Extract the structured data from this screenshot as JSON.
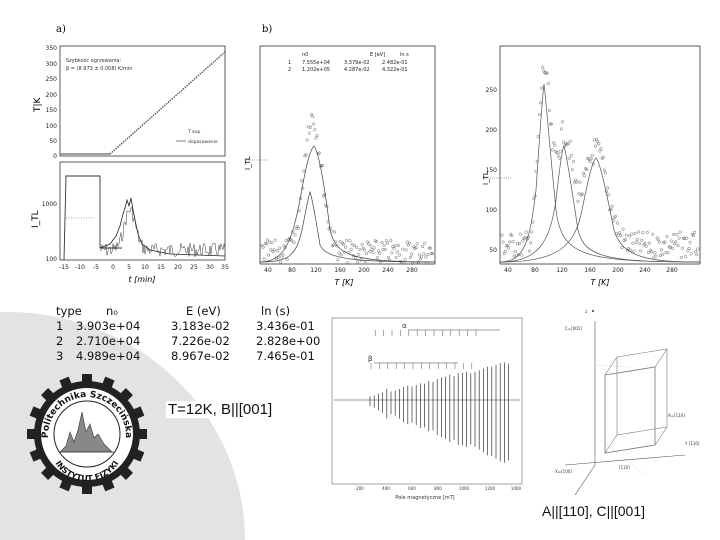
{
  "labels": {
    "a": "a)",
    "b": "b)"
  },
  "panel_a_top": {
    "ylabel": "T|K",
    "xlabel": "t [min]",
    "annotation_line1": "Szybkość ogrzewania:",
    "annotation_line2": "β = (8.973 ± 0.008) K/min",
    "legend_1": "T exp",
    "legend_2": "dopasowanie",
    "yticks": [
      "350",
      "300",
      "250",
      "200",
      "150",
      "100",
      "50",
      "0"
    ]
  },
  "panel_a_bottom": {
    "ylabel": "I_TL",
    "yticks": [
      "1000",
      "100"
    ],
    "xticks": [
      "-15",
      "-10",
      "-5",
      "0",
      "5",
      "10",
      "15",
      "20",
      "25",
      "30",
      "35"
    ],
    "xlabel": "t [min]"
  },
  "panel_b1": {
    "legend_header": [
      "n0",
      "E [eV]",
      "ln s"
    ],
    "legend_row1": [
      "1",
      "7.555e+04",
      "3.379e-02",
      "2.482e-01"
    ],
    "legend_row2": [
      "2",
      "1.202e+05",
      "4.287e-02",
      "4.322e-01"
    ],
    "xticks": [
      "40",
      "80",
      "120",
      "160",
      "200",
      "240",
      "280"
    ],
    "yticks": [
      "400",
      "300",
      "200",
      "100"
    ],
    "xlabel": "T [K]",
    "ylabel": "I_TL"
  },
  "panel_b2": {
    "xticks": [
      "40",
      "80",
      "120",
      "160",
      "200",
      "240",
      "280"
    ],
    "yticks": [
      "250",
      "200",
      "150",
      "100",
      "50"
    ],
    "xlabel": "T [K]",
    "ylabel": "I_TL"
  },
  "table": {
    "headers": [
      "type",
      "n₀",
      "E (eV)",
      "ln (s)"
    ],
    "rows": [
      [
        "1",
        "3.903e+04",
        "3.183e-02",
        "3.436e-01"
      ],
      [
        "2",
        "2.710e+04",
        "7.226e-02",
        "2.828e+00"
      ],
      [
        "3",
        "4.989e+04",
        "8.967e-02",
        "7.465e-01"
      ]
    ]
  },
  "epr": {
    "xlabel": "Pole magnetyczne [mT]",
    "xticks": [
      "200",
      "400",
      "600",
      "800",
      "1000",
      "1200",
      "1400"
    ],
    "alpha": "α",
    "beta": "β"
  },
  "logo": {
    "text_top": "Politechnika Szczecińska",
    "text_bottom": "INSTYTUT FIZYKI"
  },
  "caption_t": "T=12K, B||[001]",
  "caption_ac": "A||[110], C||[001]",
  "crystal": {
    "z": "z",
    "c001": "C=[001]",
    "a110": "A=[110]",
    "y110": "Y [110]",
    "x100": "X=[100]",
    "y_1": "[110]"
  }
}
